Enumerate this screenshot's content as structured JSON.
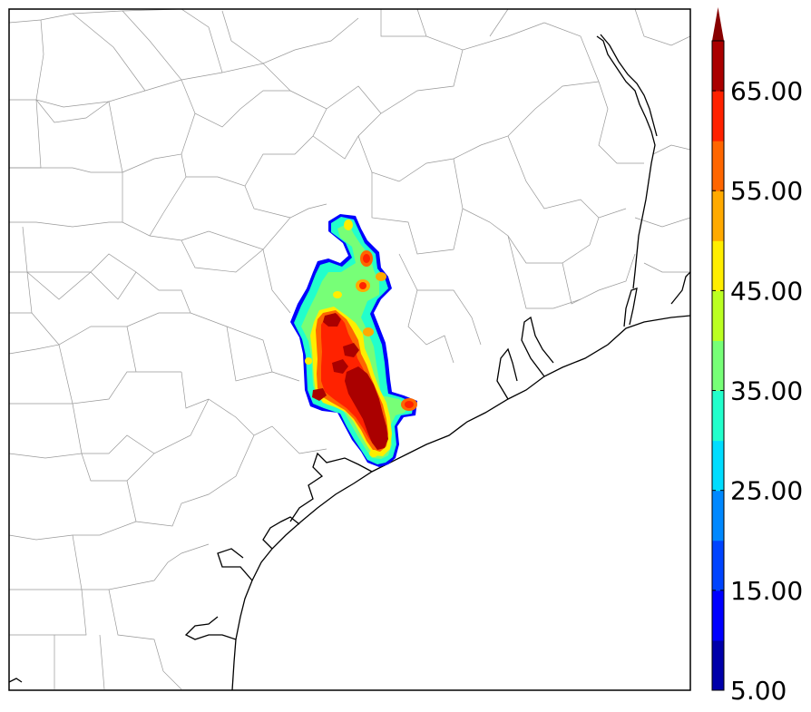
{
  "colorbar": {
    "tick_labels": [
      "5.00",
      "15.00",
      "25.00",
      "35.00",
      "45.00",
      "55.00",
      "65.00"
    ],
    "tick_values": [
      5,
      15,
      25,
      35,
      45,
      55,
      65
    ],
    "range": [
      5,
      70
    ],
    "step": 5,
    "extend": "max",
    "bands": [
      {
        "from": 5,
        "to": 10,
        "color": "#0000aa"
      },
      {
        "from": 10,
        "to": 15,
        "color": "#0000ff"
      },
      {
        "from": 15,
        "to": 20,
        "color": "#0044ff"
      },
      {
        "from": 20,
        "to": 25,
        "color": "#0088ff"
      },
      {
        "from": 25,
        "to": 30,
        "color": "#00ddff"
      },
      {
        "from": 30,
        "to": 35,
        "color": "#22ffcc"
      },
      {
        "from": 35,
        "to": 40,
        "color": "#77ff77"
      },
      {
        "from": 40,
        "to": 45,
        "color": "#bbff22"
      },
      {
        "from": 45,
        "to": 50,
        "color": "#ffee00"
      },
      {
        "from": 50,
        "to": 55,
        "color": "#ffaa00"
      },
      {
        "from": 55,
        "to": 60,
        "color": "#ff6600"
      },
      {
        "from": 60,
        "to": 65,
        "color": "#ff2200"
      },
      {
        "from": 65,
        "to": 70,
        "color": "#aa0000"
      }
    ],
    "extend_color": "#880000"
  },
  "map": {
    "coastline_color": "#000000",
    "county_line_color": "#999999",
    "ocean_color": "#ffffff",
    "land_color": "#ffffff"
  }
}
